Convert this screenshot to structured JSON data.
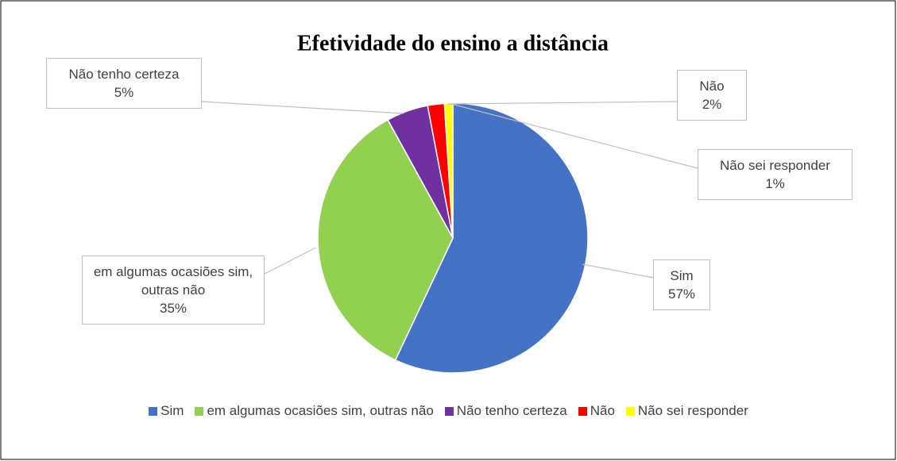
{
  "chart_data": {
    "type": "pie",
    "title": "Efetividade do ensino a distância",
    "categories": [
      "Sim",
      "em algumas ocasiões sim, outras não",
      "Não tenho certeza",
      "Não",
      "Não sei responder"
    ],
    "values": [
      57,
      35,
      5,
      2,
      1
    ],
    "value_labels": [
      "57%",
      "35%",
      "5%",
      "2%",
      "1%"
    ],
    "colors": [
      "#4472c4",
      "#92d050",
      "#7030a0",
      "#ff0000",
      "#ffff00"
    ],
    "legend": "bottom"
  }
}
